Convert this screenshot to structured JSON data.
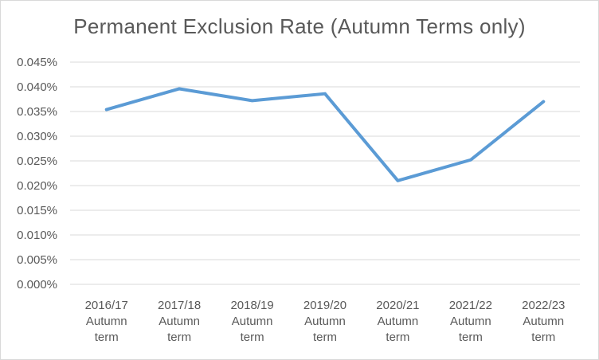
{
  "chart_data": {
    "type": "line",
    "title": "Permanent Exclusion Rate (Autumn Terms only)",
    "xlabel": "",
    "ylabel": "",
    "categories": [
      [
        "2016/17",
        "Autumn",
        "term"
      ],
      [
        "2017/18",
        "Autumn",
        "term"
      ],
      [
        "2018/19",
        "Autumn",
        "term"
      ],
      [
        "2019/20",
        "Autumn",
        "term"
      ],
      [
        "2020/21",
        "Autumn",
        "term"
      ],
      [
        "2021/22",
        "Autumn",
        "term"
      ],
      [
        "2022/23",
        "Autumn",
        "term"
      ]
    ],
    "series": [
      {
        "values": [
          0.0354,
          0.0396,
          0.0372,
          0.0386,
          0.021,
          0.0252,
          0.037
        ],
        "color": "#5b9bd5"
      }
    ],
    "ylim": [
      0,
      0.045
    ],
    "yticks": [
      "0.000%",
      "0.005%",
      "0.010%",
      "0.015%",
      "0.020%",
      "0.025%",
      "0.030%",
      "0.035%",
      "0.040%",
      "0.045%"
    ],
    "grid": true,
    "legend": "none"
  }
}
